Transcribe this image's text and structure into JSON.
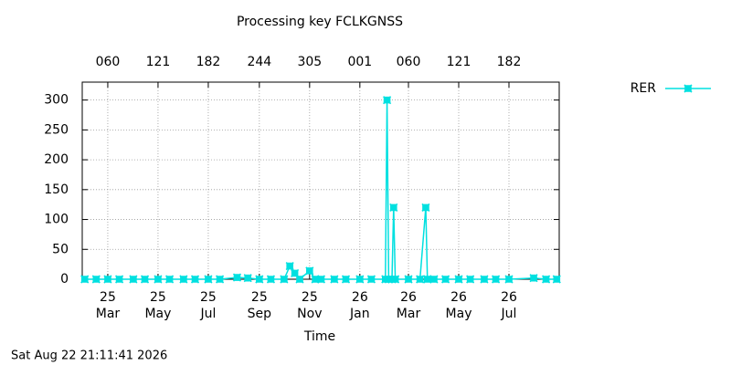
{
  "chart_data": {
    "type": "line",
    "title": "Processing key FCLKGNSS",
    "x_label": "Time",
    "timestamp": "Sat Aug 22 21:11:41 2026",
    "xlim": [
      "2025-01-29",
      "2026-08-31"
    ],
    "ylim": [
      0,
      330
    ],
    "yticks": [
      0,
      50,
      100,
      150,
      200,
      250,
      300
    ],
    "xticks": [
      {
        "value": "2025-03-01",
        "label": "25 Mar"
      },
      {
        "value": "2025-05-01",
        "label": "25 May"
      },
      {
        "value": "2025-07-01",
        "label": "25 Jul"
      },
      {
        "value": "2025-09-01",
        "label": "25 Sep"
      },
      {
        "value": "2025-11-01",
        "label": "25 Nov"
      },
      {
        "value": "2026-01-01",
        "label": "26 Jan"
      },
      {
        "value": "2026-03-01",
        "label": "26 Mar"
      },
      {
        "value": "2026-05-01",
        "label": "26 May"
      },
      {
        "value": "2026-07-01",
        "label": "26 Jul"
      }
    ],
    "x2ticks": [
      {
        "value": "2025-03-01",
        "label": "060"
      },
      {
        "value": "2025-05-01",
        "label": "121"
      },
      {
        "value": "2025-07-01",
        "label": "182"
      },
      {
        "value": "2025-09-01",
        "label": "244"
      },
      {
        "value": "2025-11-01",
        "label": "305"
      },
      {
        "value": "2026-01-01",
        "label": "001"
      },
      {
        "value": "2026-03-01",
        "label": "060"
      },
      {
        "value": "2026-05-01",
        "label": "121"
      },
      {
        "value": "2026-07-01",
        "label": "182"
      }
    ],
    "grid": true,
    "legend": "upper right",
    "x": [
      "2025-02-01",
      "2025-02-15",
      "2025-03-01",
      "2025-03-15",
      "2025-04-01",
      "2025-04-15",
      "2025-05-01",
      "2025-05-15",
      "2025-06-01",
      "2025-06-15",
      "2025-07-01",
      "2025-07-15",
      "2025-08-05",
      "2025-08-18",
      "2025-09-01",
      "2025-09-15",
      "2025-10-01",
      "2025-10-08",
      "2025-10-14",
      "2025-10-20",
      "2025-11-01",
      "2025-11-08",
      "2025-11-15",
      "2025-12-01",
      "2025-12-15",
      "2026-01-01",
      "2026-01-15",
      "2026-02-01",
      "2026-02-03",
      "2026-02-05",
      "2026-02-09",
      "2026-02-11",
      "2026-02-13",
      "2026-03-01",
      "2026-03-15",
      "2026-03-22",
      "2026-03-24",
      "2026-04-01",
      "2026-04-15",
      "2026-05-01",
      "2026-05-15",
      "2026-06-01",
      "2026-06-15",
      "2026-07-01",
      "2026-07-31",
      "2026-08-15",
      "2026-08-28"
    ],
    "series": [
      {
        "name": "RER",
        "color": "#00e0e0",
        "values": [
          0,
          0,
          0,
          0,
          0,
          0,
          0,
          0,
          0,
          0,
          0,
          0,
          3,
          2,
          0,
          0,
          0,
          22,
          10,
          0,
          14,
          0,
          0,
          0,
          0,
          0,
          0,
          0,
          300,
          0,
          0,
          120,
          0,
          0,
          0,
          120,
          0,
          0,
          0,
          0,
          0,
          0,
          0,
          0,
          2,
          0,
          0
        ]
      }
    ]
  }
}
